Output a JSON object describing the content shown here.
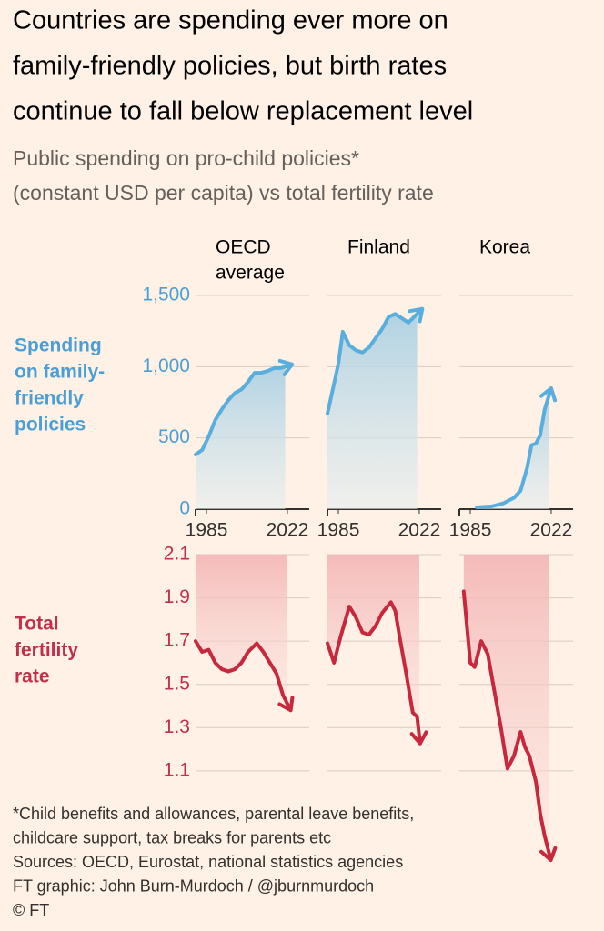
{
  "title": [
    "Countries are spending ever more on",
    "family-friendly policies, but birth rates",
    "continue to fall below replacement level"
  ],
  "subtitle": [
    "Public spending on pro-child policies*",
    "(constant USD per capita) vs total fertility rate"
  ],
  "ylabel": [
    "Spending",
    "on family-",
    "friendly",
    "policies"
  ],
  "y2label": [
    "Total",
    "fertility",
    "rate"
  ],
  "notes": [
    "*Child benefits and allowances, parental leave benefits,",
    "childcare support, tax breaks for parents etc",
    "Sources: OECD, Eurostat, national statistics agencies",
    "FT graphic: John Burn-Murdoch / @jburnmurdoch",
    "© FT"
  ],
  "chart_data": [
    {
      "type": "line",
      "title": [
        "OECD",
        "average"
      ],
      "xlim": [
        1980,
        2032
      ],
      "xticks": [
        1985,
        2022
      ],
      "ylim": [
        0,
        1500
      ],
      "yticks": [
        0,
        500,
        {
          "value": 1000,
          "label": "1,000"
        },
        {
          "value": 1500,
          "label": "1,500"
        }
      ],
      "y2lim": [
        0.7,
        2.1
      ],
      "y2ticks": [
        1.1,
        1.3,
        1.5,
        1.7,
        1.9,
        2.1
      ],
      "grid": true,
      "series": [
        {
          "color": "#5aaedd",
          "x": [
            1980,
            1983,
            1986,
            1989,
            1992,
            1995,
            1998,
            2001,
            2004,
            2007,
            2010,
            2013,
            2016,
            2019,
            2021
          ],
          "values": [
            383,
            415,
            510,
            625,
            700,
            765,
            815,
            840,
            893,
            957,
            957,
            970,
            990,
            990,
            1000
          ]
        },
        {
          "color": "#c8283c",
          "axis": "y2",
          "x": [
            1980,
            1983,
            1986,
            1989,
            1992,
            1995,
            1998,
            2001,
            2004,
            2008,
            2011,
            2014,
            2017,
            2020,
            2022
          ],
          "values": [
            1.7,
            1.65,
            1.66,
            1.6,
            1.57,
            1.56,
            1.57,
            1.6,
            1.65,
            1.69,
            1.65,
            1.6,
            1.55,
            1.45,
            1.41
          ]
        }
      ]
    },
    {
      "type": "line",
      "title": [
        "Finland"
      ],
      "xlim": [
        1980,
        2032
      ],
      "xticks": [
        1985,
        2022
      ],
      "ylim": [
        0,
        1500
      ],
      "yticks": [
        0,
        500,
        1000,
        1500
      ],
      "y2lim": [
        0.7,
        2.1
      ],
      "y2ticks": [
        1.1,
        1.3,
        1.5,
        1.7,
        1.9,
        2.1
      ],
      "grid": true,
      "series": [
        {
          "color": "#5aaedd",
          "x": [
            1980,
            1985,
            1987,
            1990,
            1993,
            1996,
            1999,
            2002,
            2005,
            2008,
            2011,
            2014,
            2017,
            2021
          ],
          "values": [
            670,
            1020,
            1245,
            1150,
            1115,
            1100,
            1135,
            1200,
            1265,
            1350,
            1370,
            1340,
            1310,
            1370
          ]
        },
        {
          "color": "#c8283c",
          "axis": "y2",
          "x": [
            1980,
            1983,
            1986,
            1990,
            1993,
            1996,
            1999,
            2002,
            2005,
            2009,
            2011,
            2013,
            2016,
            2019,
            2021,
            2022
          ],
          "values": [
            1.69,
            1.6,
            1.72,
            1.86,
            1.81,
            1.74,
            1.73,
            1.77,
            1.83,
            1.88,
            1.84,
            1.72,
            1.55,
            1.37,
            1.35,
            1.26
          ]
        }
      ]
    },
    {
      "type": "line",
      "title": [
        "Korea"
      ],
      "xlim": [
        1980,
        2032
      ],
      "xticks": [
        1985,
        2022
      ],
      "ylim": [
        0,
        1500
      ],
      "yticks": [
        0,
        500,
        1000,
        1500
      ],
      "y2lim": [
        0.7,
        2.1
      ],
      "y2ticks": [
        1.1,
        1.3,
        1.5,
        1.7,
        1.9,
        2.1
      ],
      "grid": true,
      "series": [
        {
          "color": "#5aaedd",
          "x": [
            1988,
            1995,
            2000,
            2005,
            2008,
            2011,
            2013,
            2015,
            2017,
            2019,
            2021
          ],
          "values": [
            13,
            20,
            40,
            80,
            130,
            290,
            450,
            460,
            520,
            700,
            800
          ]
        },
        {
          "color": "#c8283c",
          "axis": "y2",
          "x": [
            1982,
            1985,
            1987,
            1990,
            1993,
            1996,
            1999,
            2002,
            2005,
            2008,
            2010,
            2012,
            2015,
            2017,
            2019,
            2021
          ],
          "values": [
            1.93,
            1.6,
            1.58,
            1.7,
            1.64,
            1.47,
            1.3,
            1.11,
            1.17,
            1.28,
            1.21,
            1.17,
            1.05,
            0.9,
            0.8,
            0.72
          ]
        }
      ]
    }
  ]
}
